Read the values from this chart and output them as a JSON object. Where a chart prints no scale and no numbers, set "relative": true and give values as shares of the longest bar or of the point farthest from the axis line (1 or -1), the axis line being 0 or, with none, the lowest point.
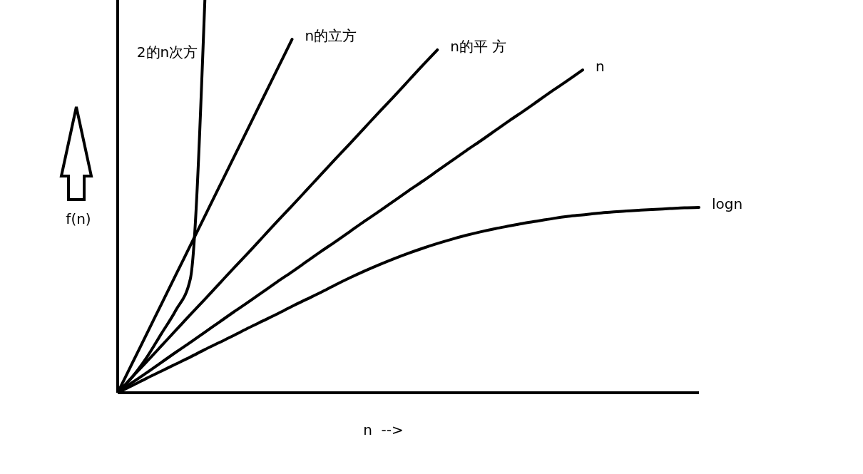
{
  "chart_data": {
    "type": "line",
    "relative": true,
    "xlabel": "n  -->",
    "ylabel": "f(n)",
    "marker": "none",
    "categories": [
      null,
      null,
      null,
      null,
      null,
      null,
      null,
      null,
      null,
      null,
      null,
      null,
      null,
      null,
      null,
      null,
      null,
      null,
      null,
      null,
      null,
      null,
      null,
      null,
      null,
      null,
      null,
      null,
      null,
      null,
      null,
      null,
      null,
      null,
      null,
      null,
      null,
      null,
      null,
      null,
      null
    ],
    "series": [
      {
        "name": "2的n次方",
        "color": "#000000",
        "values": [
          0,
          0.04,
          0.09,
          0.15,
          0.21,
          0.29,
          1,
          null,
          null,
          null,
          null,
          null,
          null,
          null,
          null,
          null,
          null,
          null,
          null,
          null,
          null,
          null,
          null,
          null,
          null,
          null,
          null,
          null,
          null,
          null,
          null,
          null,
          null,
          null,
          null,
          null,
          null,
          null,
          null,
          null,
          null
        ]
      },
      {
        "name": "n的立方",
        "color": "#000000",
        "values": [
          0,
          0.075,
          0.15,
          0.225,
          0.3,
          0.375,
          0.45,
          0.525,
          0.6,
          0.675,
          0.75,
          0.825,
          0.9,
          null,
          null,
          null,
          null,
          null,
          null,
          null,
          null,
          null,
          null,
          null,
          null,
          null,
          null,
          null,
          null,
          null,
          null,
          null,
          null,
          null,
          null,
          null,
          null,
          null,
          null,
          null,
          null
        ]
      },
      {
        "name": "n的平 方",
        "color": "#000000",
        "values": [
          0,
          0.04,
          0.079,
          0.119,
          0.159,
          0.199,
          0.238,
          0.278,
          0.318,
          0.357,
          0.397,
          0.437,
          0.476,
          0.516,
          0.556,
          0.596,
          0.635,
          0.675,
          0.715,
          0.754,
          0.794,
          0.834,
          0.873,
          null,
          null,
          null,
          null,
          null,
          null,
          null,
          null,
          null,
          null,
          null,
          null,
          null,
          null,
          null,
          null,
          null,
          null
        ]
      },
      {
        "name": "n",
        "color": "#000000",
        "values": [
          0,
          0.026,
          0.051,
          0.077,
          0.103,
          0.128,
          0.154,
          0.18,
          0.206,
          0.231,
          0.257,
          0.283,
          0.308,
          0.334,
          0.36,
          0.385,
          0.411,
          0.437,
          0.462,
          0.488,
          0.514,
          0.539,
          0.565,
          0.591,
          0.617,
          0.642,
          0.668,
          0.694,
          0.719,
          0.745,
          0.771,
          0.796,
          0.822,
          null,
          null,
          null,
          null,
          null,
          null,
          null,
          null
        ]
      },
      {
        "name": "logn",
        "color": "#000000",
        "values": [
          0,
          0.018,
          0.037,
          0.055,
          0.073,
          0.091,
          0.11,
          0.128,
          0.146,
          0.165,
          0.183,
          0.201,
          0.22,
          0.238,
          0.256,
          0.275,
          0.293,
          0.31,
          0.326,
          0.341,
          0.355,
          0.368,
          0.38,
          0.391,
          0.401,
          0.41,
          0.418,
          0.425,
          0.432,
          0.438,
          0.444,
          0.449,
          0.453,
          0.457,
          0.46,
          0.463,
          0.465,
          0.467,
          0.469,
          0.471,
          0.472
        ]
      }
    ]
  }
}
